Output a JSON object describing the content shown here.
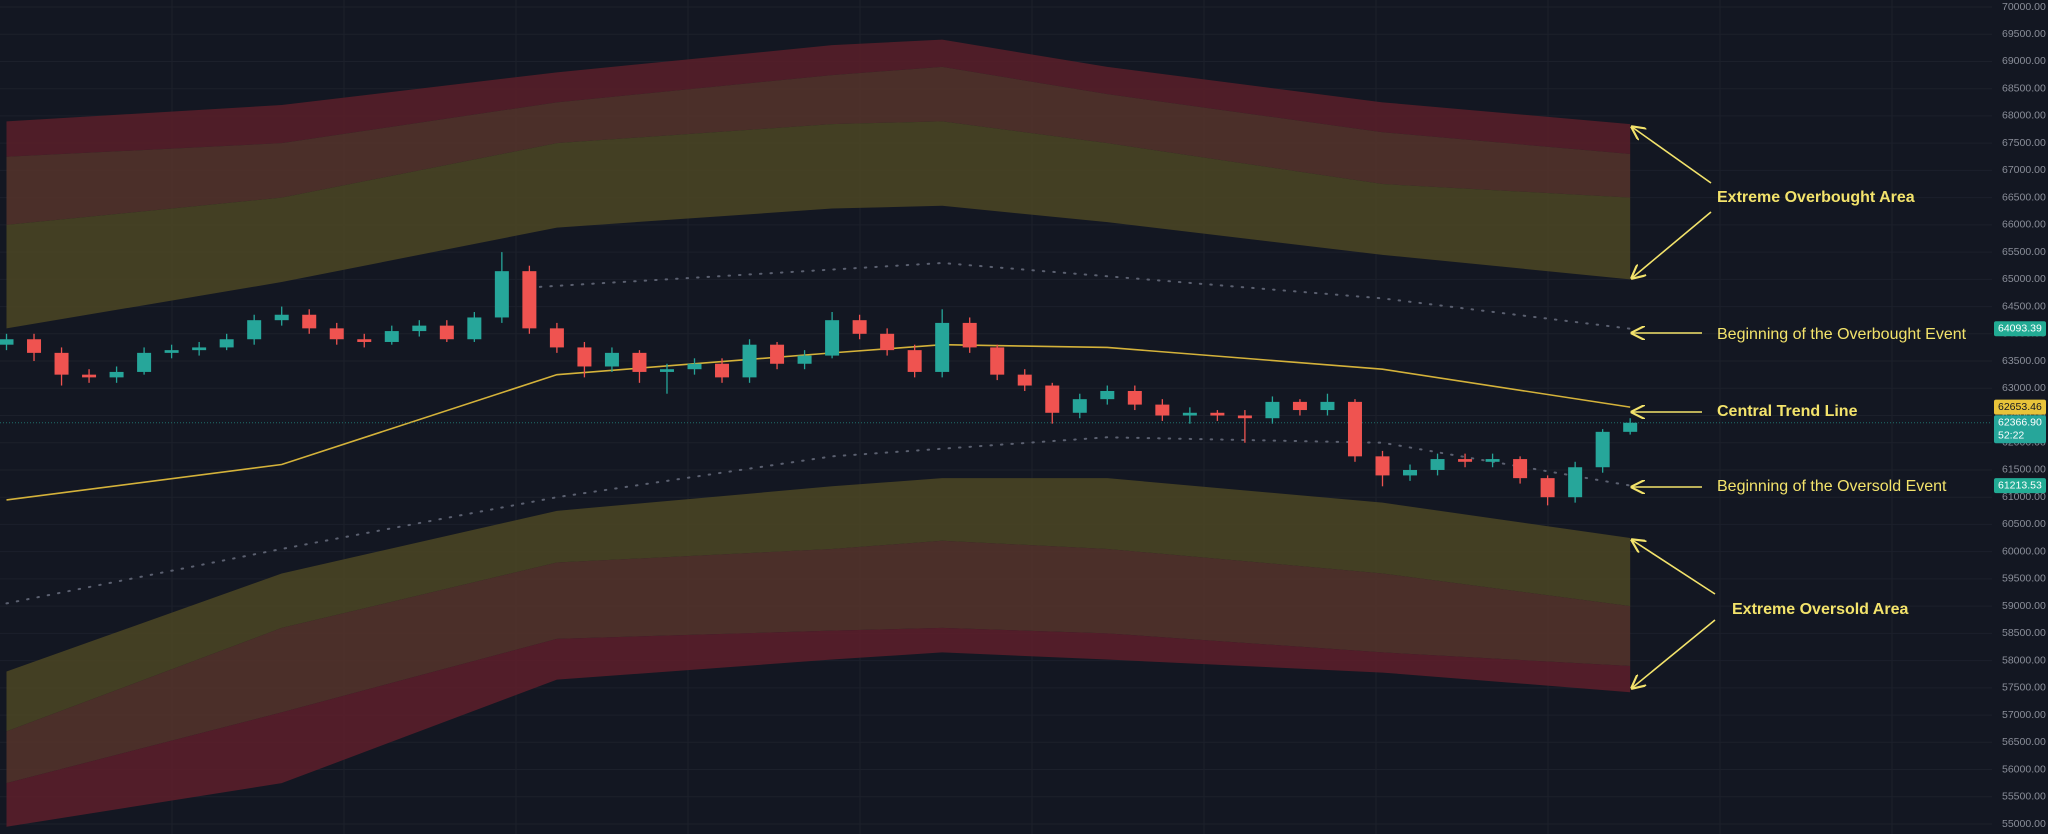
{
  "chart_data": {
    "type": "candlestick",
    "ylim": [
      55000,
      70000
    ],
    "yticks": [
      {
        "value": 55000,
        "label": "55000.00"
      },
      {
        "value": 55500,
        "label": "55500.00"
      },
      {
        "value": 56000,
        "label": "56000.00"
      },
      {
        "value": 56500,
        "label": "56500.00"
      },
      {
        "value": 57000,
        "label": "57000.00"
      },
      {
        "value": 57500,
        "label": "57500.00"
      },
      {
        "value": 58000,
        "label": "58000.00"
      },
      {
        "value": 58500,
        "label": "58500.00"
      },
      {
        "value": 59000,
        "label": "59000.00"
      },
      {
        "value": 59500,
        "label": "59500.00"
      },
      {
        "value": 60000,
        "label": "60000.00"
      },
      {
        "value": 60500,
        "label": "60500.00"
      },
      {
        "value": 61000,
        "label": "61000.00"
      },
      {
        "value": 61500,
        "label": "61500.00"
      },
      {
        "value": 62000,
        "label": "62000.00"
      },
      {
        "value": 62500,
        "label": "62500.00"
      },
      {
        "value": 63000,
        "label": "63000.00"
      },
      {
        "value": 63500,
        "label": "63500.00"
      },
      {
        "value": 64000,
        "label": "64000.00"
      },
      {
        "value": 64500,
        "label": "64500.00"
      },
      {
        "value": 65000,
        "label": "65000.00"
      },
      {
        "value": 65500,
        "label": "65500.00"
      },
      {
        "value": 66000,
        "label": "66000.00"
      },
      {
        "value": 66500,
        "label": "66500.00"
      },
      {
        "value": 67000,
        "label": "67000.00"
      },
      {
        "value": 67500,
        "label": "67500.00"
      },
      {
        "value": 68000,
        "label": "68000.00"
      },
      {
        "value": 68500,
        "label": "68500.00"
      },
      {
        "value": 69000,
        "label": "69000.00"
      },
      {
        "value": 69500,
        "label": "69500.00"
      },
      {
        "value": 70000,
        "label": "70000.00"
      }
    ],
    "grid": true,
    "up_color": "#26a69a",
    "down_color": "#ef5350",
    "open": [
      63800,
      63900,
      63650,
      63250,
      63200,
      63300,
      63650,
      63700,
      63750,
      63900,
      64250,
      64350,
      64100,
      63900,
      63850,
      64050,
      64150,
      63900,
      64300,
      65150,
      64100,
      63750,
      63400,
      63650,
      63300,
      63350,
      63450,
      63200,
      63800,
      63450,
      63600,
      64250,
      64000,
      63700,
      63300,
      64200,
      63750,
      63250,
      63050,
      62550,
      62800,
      62950,
      62700,
      62500,
      62550,
      62500,
      62450,
      62750,
      62600,
      62750,
      61750,
      61400,
      61500,
      61700,
      61650,
      61700,
      61350,
      61000,
      61550,
      62200
    ],
    "high": [
      64000,
      64000,
      63750,
      63350,
      63400,
      63750,
      63800,
      63850,
      64000,
      64350,
      64500,
      64450,
      64200,
      64000,
      64150,
      64250,
      64250,
      64400,
      65500,
      65250,
      64200,
      63850,
      63750,
      63700,
      63450,
      63550,
      63550,
      63900,
      63850,
      63700,
      64400,
      64350,
      64100,
      63800,
      64450,
      64300,
      63800,
      63350,
      63100,
      62900,
      63050,
      63050,
      62800,
      62650,
      62600,
      62600,
      62850,
      62800,
      62900,
      62800,
      61850,
      61600,
      61800,
      61800,
      61800,
      61750,
      61400,
      61650,
      62250,
      62450
    ],
    "low": [
      63700,
      63500,
      63050,
      63100,
      63100,
      63250,
      63550,
      63600,
      63700,
      63800,
      64150,
      64000,
      63800,
      63750,
      63800,
      63950,
      63850,
      63850,
      64200,
      64000,
      63650,
      63200,
      63300,
      63100,
      62900,
      63250,
      63100,
      63100,
      63350,
      63350,
      63550,
      63900,
      63600,
      63200,
      63200,
      63650,
      63150,
      62950,
      62350,
      62450,
      62700,
      62600,
      62400,
      62350,
      62400,
      62000,
      62350,
      62500,
      62500,
      61650,
      61200,
      61300,
      61400,
      61550,
      61550,
      61250,
      60850,
      60900,
      61450,
      62150
    ],
    "close": [
      63900,
      63650,
      63250,
      63200,
      63300,
      63650,
      63700,
      63750,
      63900,
      64250,
      64350,
      64100,
      63900,
      63850,
      64050,
      64150,
      63900,
      64300,
      65150,
      64100,
      63750,
      63400,
      63650,
      63300,
      63350,
      63450,
      63200,
      63800,
      63450,
      63600,
      64250,
      64000,
      63700,
      63300,
      64200,
      63750,
      63250,
      63050,
      62550,
      62800,
      62950,
      62700,
      62500,
      62550,
      62500,
      62450,
      62750,
      62600,
      62750,
      61750,
      61400,
      61500,
      61700,
      61650,
      61700,
      61350,
      61000,
      61550,
      62200,
      62366.9
    ],
    "band_x": [
      0,
      10,
      20,
      30,
      34,
      40,
      50,
      59
    ],
    "upper_band": {
      "edges": [
        [
          67900,
          68200,
          68800,
          69300,
          69400,
          68900,
          68250,
          67850
        ],
        [
          67250,
          67500,
          68250,
          68750,
          68900,
          68400,
          67700,
          67300
        ],
        [
          66000,
          66500,
          67500,
          67850,
          67900,
          67500,
          66750,
          66500
        ],
        [
          64100,
          64950,
          65950,
          66300,
          66350,
          66050,
          65450,
          65000
        ]
      ],
      "colors": [
        "#5a1f29",
        "#56342a",
        "#4c4723"
      ]
    },
    "lower_band": {
      "edges": [
        [
          57800,
          59600,
          60750,
          61200,
          61350,
          61350,
          60900,
          60250
        ],
        [
          56700,
          58600,
          59800,
          60050,
          60200,
          60050,
          59600,
          59000
        ],
        [
          55750,
          57050,
          58400,
          58550,
          58600,
          58500,
          58150,
          57900
        ],
        [
          54950,
          55750,
          57650,
          58020,
          58150,
          58020,
          57780,
          57420
        ]
      ],
      "colors": [
        "#4c4723",
        "#56342a",
        "#5e1f2a"
      ]
    },
    "lines": [
      {
        "color": "#d4b23a",
        "style": "solid",
        "x": [
          0,
          10,
          20,
          30,
          34,
          40,
          50,
          59
        ],
        "values": [
          60950,
          61600,
          63250,
          63650,
          63800,
          63750,
          63350,
          62653.46
        ]
      },
      {
        "color": "#5b6070",
        "style": "dotted",
        "x": [
          19,
          34,
          50,
          59
        ],
        "values": [
          64850,
          65300,
          64650,
          64093.39
        ]
      },
      {
        "color": "#5b6070",
        "style": "dotted",
        "x": [
          0,
          10,
          20,
          30,
          40,
          50,
          59
        ],
        "values": [
          59050,
          60050,
          61000,
          61750,
          62100,
          62000,
          61213.53
        ]
      }
    ],
    "price_tags": [
      {
        "value": 64093.39,
        "color": "#22ab94"
      },
      {
        "value": 62653.46,
        "color": "#e8c33a"
      },
      {
        "value": {
          "value": 62366.9,
          "label": "62366.90"
        },
        "color": "#26a69a",
        "countdown": "52:22"
      },
      {
        "value": 61213.53,
        "color": "#22ab94"
      }
    ],
    "annotations": [
      {
        "text": "Extreme Overbought Area",
        "bold": true
      },
      {
        "text": "Beginning of the Overbought Event",
        "bold": false
      },
      {
        "text": "Central Trend Line",
        "bold": true
      },
      {
        "text": "Beginning of the Oversold Event",
        "bold": false
      },
      {
        "text": "Extreme Oversold Area",
        "bold": true
      }
    ]
  }
}
